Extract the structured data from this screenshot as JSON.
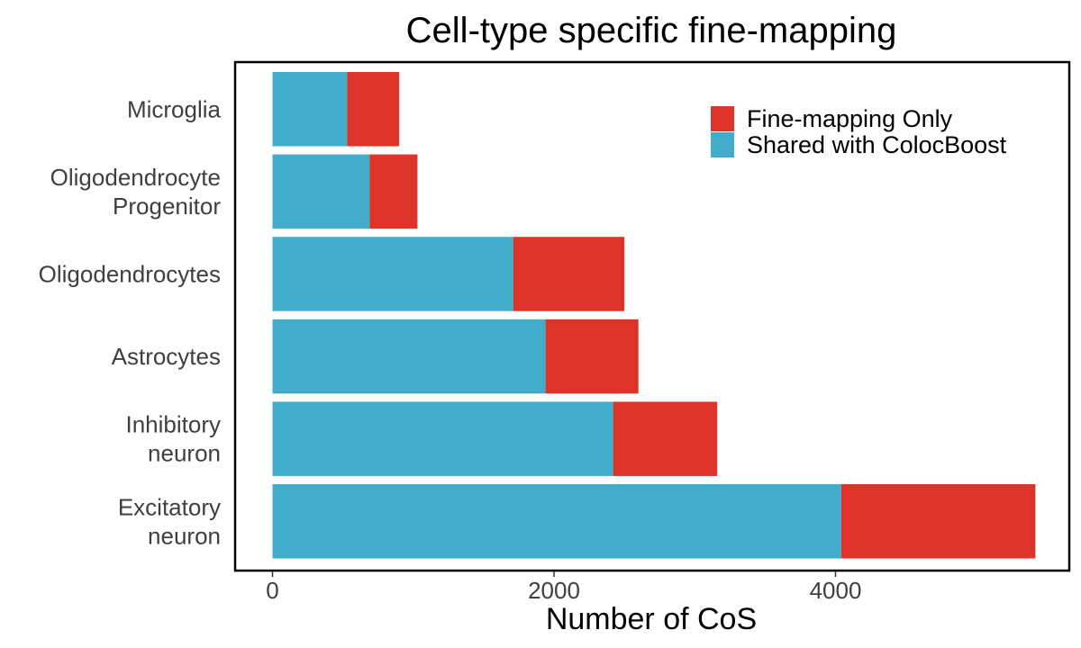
{
  "colors": {
    "shared": "#42ADCB",
    "fine_mapping_only": "#DE3329",
    "panel_border": "#000000",
    "tick_text": "#3f3f3f"
  },
  "chart_data": {
    "type": "bar",
    "orientation": "horizontal",
    "stacked": true,
    "title": "Cell-type specific fine-mapping",
    "xlabel": "Number of CoS",
    "ylabel": "",
    "xlim": [
      -270,
      5560
    ],
    "xticks": [
      0,
      2000,
      4000
    ],
    "grid": false,
    "legend_position": "top-right",
    "categories": [
      [
        "Microglia"
      ],
      [
        "Oligodendrocyte",
        "Progenitor"
      ],
      [
        "Oligodendrocytes"
      ],
      [
        "Astrocytes"
      ],
      [
        "Inhibitory",
        "neuron"
      ],
      [
        "Excitatory",
        "neuron"
      ]
    ],
    "series": [
      {
        "name": "Shared with ColocBoost",
        "color": "#42ADCB",
        "values": [
          530,
          690,
          1710,
          1940,
          2420,
          4040
        ]
      },
      {
        "name": "Fine-mapping Only",
        "color": "#DE3329",
        "values": [
          370,
          340,
          790,
          660,
          740,
          1380
        ]
      }
    ],
    "legend_order": [
      "Fine-mapping Only",
      "Shared with ColocBoost"
    ]
  }
}
